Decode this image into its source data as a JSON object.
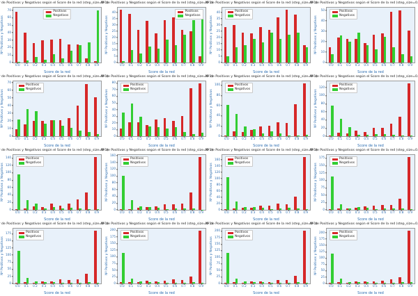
{
  "figure": {
    "subplot_title": "Nº de Positivos y Negativos según el Score de la red (step_size=0.1)",
    "xlabel": "Score de la red",
    "ylabel": "Nº Positivos y Negativos",
    "legend_labels": [
      "Positivos",
      "Negativos"
    ],
    "colors": {
      "positivos": "#d62728",
      "negativos": "#32cd32",
      "axes_background": "#e8f1fa",
      "axis_label_blue": "#2b6cb0",
      "title_text": "#1a1a1a"
    },
    "grid_layout": "4x4"
  },
  "chart_data": [
    {
      "type": "bar",
      "title": "Nº de Positivos y Negativos según el Score de la red (step_size=0.1)",
      "xlabel": "Score de la red",
      "ylabel": "Nº Positivos y Negativos",
      "categories": [
        "0.0",
        "0.1",
        "0.2",
        "0.3",
        "0.4",
        "0.5",
        "0.6",
        "0.7",
        "0.8",
        "0.9"
      ],
      "series": [
        {
          "name": "Positivos",
          "values": [
            68,
            40,
            26,
            30,
            31,
            32,
            24,
            24,
            6,
            2
          ]
        },
        {
          "name": "Negativos",
          "values": [
            1,
            3,
            7,
            4,
            11,
            6,
            16,
            23,
            27,
            70
          ]
        }
      ],
      "ylim": [
        0,
        74
      ],
      "ytick_step": 10,
      "legend_pos": "upper-center",
      "grid": false
    },
    {
      "type": "bar",
      "title": "Nº de Positivos y Negativos según el Score de la red (step_size=0.1)",
      "xlabel": "Score de la red",
      "ylabel": "Nº Positivos y Negativos",
      "categories": [
        "0.0",
        "0.1",
        "0.2",
        "0.3",
        "0.4",
        "0.5",
        "0.6",
        "0.7",
        "0.8",
        "0.9"
      ],
      "series": [
        {
          "name": "Positivos",
          "values": [
            42,
            39,
            26,
            33,
            23,
            34,
            36,
            26,
            25,
            5
          ]
        },
        {
          "name": "Negativos",
          "values": [
            1,
            10,
            7,
            13,
            11,
            18,
            14,
            22,
            34,
            37
          ]
        }
      ],
      "ylim": [
        0,
        44
      ],
      "ytick_step": 5,
      "legend_pos": "upper-right",
      "grid": false
    },
    {
      "type": "bar",
      "title": "Nº de Positivos y Negativos según el Score de la red (step_size=0.1)",
      "xlabel": "Score de la red",
      "ylabel": "Nº Positivos y Negativos",
      "categories": [
        "0.0",
        "0.1",
        "0.2",
        "0.3",
        "0.4",
        "0.5",
        "0.6",
        "0.7",
        "0.8",
        "0.9"
      ],
      "series": [
        {
          "name": "Positivos",
          "values": [
            28,
            30,
            24,
            23,
            28,
            26,
            36,
            42,
            38,
            14
          ]
        },
        {
          "name": "Negativos",
          "values": [
            5,
            12,
            14,
            19,
            16,
            24,
            19,
            22,
            24,
            12
          ]
        }
      ],
      "ylim": [
        0,
        44
      ],
      "ytick_step": 5,
      "legend_pos": "upper-left",
      "grid": false
    },
    {
      "type": "bar",
      "title": "Nº de Positivos y Negativos según el Score de la red (step_size=0.1)",
      "xlabel": "Score de la red",
      "ylabel": "Nº Positivos y Negativos",
      "categories": [
        "0.0",
        "0.1",
        "0.2",
        "0.3",
        "0.4",
        "0.5",
        "0.6",
        "0.7",
        "0.8",
        "0.9"
      ],
      "series": [
        {
          "name": "Positivos",
          "values": [
            15,
            24,
            23,
            23,
            19,
            27,
            28,
            49,
            50,
            31
          ]
        },
        {
          "name": "Negativos",
          "values": [
            8,
            26,
            20,
            29,
            17,
            13,
            25,
            15,
            8,
            6
          ]
        }
      ],
      "ylim": [
        0,
        53
      ],
      "ytick_step": 10,
      "legend_pos": "upper-left",
      "grid": false
    },
    {
      "type": "bar",
      "title": "Nº de Positivos y Negativos según el Score de la red (step_size=0.1)",
      "xlabel": "Score de la red",
      "ylabel": "Nº Positivos y Negativos",
      "categories": [
        "0.0",
        "0.1",
        "0.2",
        "0.3",
        "0.4",
        "0.5",
        "0.6",
        "0.7",
        "0.8",
        "0.9"
      ],
      "series": [
        {
          "name": "Positivos",
          "values": [
            9,
            15,
            20,
            20,
            21,
            21,
            24,
            40,
            68,
            51
          ]
        },
        {
          "name": "Negativos",
          "values": [
            22,
            35,
            33,
            16,
            21,
            14,
            11,
            7,
            5,
            3
          ]
        }
      ],
      "ylim": [
        0,
        72
      ],
      "ytick_step": 10,
      "legend_pos": "upper-left",
      "grid": false
    },
    {
      "type": "bar",
      "title": "Nº de Positivos y Negativos según el Score de la red (step_size=0.1)",
      "xlabel": "Score de la red",
      "ylabel": "Nº Positivos y Negativos",
      "categories": [
        "0.0",
        "0.1",
        "0.2",
        "0.3",
        "0.4",
        "0.5",
        "0.6",
        "0.7",
        "0.8",
        "0.9"
      ],
      "series": [
        {
          "name": "Positivos",
          "values": [
            11,
            21,
            21,
            17,
            25,
            27,
            23,
            30,
            72,
            79
          ]
        },
        {
          "name": "Negativos",
          "values": [
            35,
            49,
            29,
            15,
            14,
            12,
            14,
            6,
            3,
            5
          ]
        }
      ],
      "ylim": [
        0,
        83
      ],
      "ytick_step": 10,
      "legend_pos": "upper-left",
      "grid": false
    },
    {
      "type": "bar",
      "title": "Nº de Positivos y Negativos según el Score de la red (step_size=0.1)",
      "xlabel": "Score de la red",
      "ylabel": "Nº Positivos y Negativos",
      "categories": [
        "0.0",
        "0.1",
        "0.2",
        "0.3",
        "0.4",
        "0.5",
        "0.6",
        "0.7",
        "0.8",
        "0.9"
      ],
      "series": [
        {
          "name": "Positivos",
          "values": [
            2,
            10,
            8,
            12,
            19,
            20,
            27,
            26,
            62,
            103
          ]
        },
        {
          "name": "Negativos",
          "values": [
            61,
            44,
            19,
            13,
            6,
            9,
            6,
            2,
            2,
            3
          ]
        }
      ],
      "ylim": [
        0,
        108
      ],
      "ytick_step": 20,
      "legend_pos": "upper-left",
      "grid": false
    },
    {
      "type": "bar",
      "title": "Nº de Positivos y Negativos según el Score de la red (step_size=0.1)",
      "xlabel": "Score de la red",
      "ylabel": "Nº Positivos y Negativos",
      "categories": [
        "0.0",
        "0.1",
        "0.2",
        "0.3",
        "0.4",
        "0.5",
        "0.6",
        "0.7",
        "0.8",
        "0.9"
      ],
      "series": [
        {
          "name": "Positivos",
          "values": [
            2,
            8,
            7,
            13,
            10,
            20,
            20,
            31,
            48,
            130
          ]
        },
        {
          "name": "Negativos",
          "values": [
            75,
            42,
            22,
            4,
            4,
            6,
            6,
            4,
            2,
            2
          ]
        }
      ],
      "ylim": [
        0,
        136
      ],
      "ytick_step": 20,
      "legend_pos": "upper-left",
      "grid": false
    },
    {
      "type": "bar",
      "title": "Nº de Positivos y Negativos según el Score de la red (step_size=0.1)",
      "xlabel": "Score de la red",
      "ylabel": "Nº Positivos y Negativos",
      "categories": [
        "0.0",
        "0.1",
        "0.2",
        "0.3",
        "0.4",
        "0.5",
        "0.6",
        "0.7",
        "0.8",
        "0.9"
      ],
      "series": [
        {
          "name": "Positivos",
          "values": [
            2,
            4,
            9,
            8,
            17,
            12,
            16,
            29,
            46,
            142
          ]
        },
        {
          "name": "Negativos",
          "values": [
            96,
            26,
            16,
            4,
            7,
            3,
            5,
            3,
            2,
            2
          ]
        }
      ],
      "ylim": [
        0,
        149
      ],
      "ytick_step": 20,
      "legend_pos": "upper-left",
      "grid": false
    },
    {
      "type": "bar",
      "title": "Nº de Positivos y Negativos según el Score de la red (step_size=0.1)",
      "xlabel": "Score de la red",
      "ylabel": "Nº Positivos y Negativos",
      "categories": [
        "0.0",
        "0.1",
        "0.2",
        "0.3",
        "0.4",
        "0.5",
        "0.6",
        "0.7",
        "0.8",
        "0.9"
      ],
      "series": [
        {
          "name": "Positivos",
          "values": [
            2,
            2,
            7,
            9,
            11,
            16,
            16,
            18,
            52,
            155
          ]
        },
        {
          "name": "Negativos",
          "values": [
            101,
            28,
            10,
            9,
            7,
            2,
            4,
            4,
            4,
            1
          ]
        }
      ],
      "ylim": [
        0,
        163
      ],
      "ytick_step": 20,
      "legend_pos": "upper-left",
      "grid": false
    },
    {
      "type": "bar",
      "title": "Nº de Positivos y Negativos según el Score de la red (step_size=0.1)",
      "xlabel": "Score de la red",
      "ylabel": "Nº Positivos y Negativos",
      "categories": [
        "0.0",
        "0.1",
        "0.2",
        "0.3",
        "0.4",
        "0.5",
        "0.6",
        "0.7",
        "0.8",
        "0.9"
      ],
      "series": [
        {
          "name": "Positivos",
          "values": [
            3,
            4,
            6,
            7,
            13,
            14,
            19,
            18,
            41,
            168
          ]
        },
        {
          "name": "Negativos",
          "values": [
            104,
            27,
            8,
            9,
            7,
            3,
            5,
            6,
            5,
            2
          ]
        }
      ],
      "ylim": [
        0,
        176
      ],
      "ytick_step": 20,
      "legend_pos": "upper-left",
      "grid": false
    },
    {
      "type": "bar",
      "title": "Nº de Positivos y Negativos según el Score de la red (step_size=0.1)",
      "xlabel": "Score de la red",
      "ylabel": "Nº Positivos y Negativos",
      "categories": [
        "0.0",
        "0.1",
        "0.2",
        "0.3",
        "0.4",
        "0.5",
        "0.6",
        "0.7",
        "0.8",
        "0.9"
      ],
      "series": [
        {
          "name": "Positivos",
          "values": [
            3,
            5,
            5,
            8,
            12,
            13,
            16,
            16,
            38,
            178
          ]
        },
        {
          "name": "Negativos",
          "values": [
            112,
            20,
            4,
            10,
            6,
            3,
            4,
            5,
            5,
            2
          ]
        }
      ],
      "ylim": [
        0,
        187
      ],
      "ytick_step": 25,
      "legend_pos": "upper-left",
      "grid": false
    },
    {
      "type": "bar",
      "title": "Nº de Positivos y Negativos según el Score de la red (step_size=0.1)",
      "xlabel": "Score de la red",
      "ylabel": "Nº Positivos y Negativos",
      "categories": [
        "0.0",
        "0.1",
        "0.2",
        "0.3",
        "0.4",
        "0.5",
        "0.6",
        "0.7",
        "0.8",
        "0.9"
      ],
      "series": [
        {
          "name": "Positivos",
          "values": [
            3,
            5,
            3,
            7,
            7,
            15,
            12,
            14,
            34,
            185
          ]
        },
        {
          "name": "Negativos",
          "values": [
            114,
            19,
            8,
            6,
            6,
            3,
            2,
            2,
            4,
            2
          ]
        }
      ],
      "ylim": [
        0,
        194
      ],
      "ytick_step": 25,
      "legend_pos": "upper-left",
      "grid": false
    },
    {
      "type": "bar",
      "title": "Nº de Positivos y Negativos según el Score de la red (step_size=0.1)",
      "xlabel": "Score de la red",
      "ylabel": "Nº Positivos y Negativos",
      "categories": [
        "0.0",
        "0.1",
        "0.2",
        "0.3",
        "0.4",
        "0.5",
        "0.6",
        "0.7",
        "0.8",
        "0.9"
      ],
      "series": [
        {
          "name": "Positivos",
          "values": [
            4,
            5,
            6,
            10,
            7,
            10,
            15,
            13,
            27,
            197
          ]
        },
        {
          "name": "Negativos",
          "values": [
            115,
            18,
            8,
            5,
            6,
            3,
            3,
            2,
            5,
            3
          ]
        }
      ],
      "ylim": [
        0,
        207
      ],
      "ytick_step": 25,
      "legend_pos": "upper-left",
      "grid": false
    },
    {
      "type": "bar",
      "title": "Nº de Positivos y Negativos según el Score de la red (step_size=0.1)",
      "xlabel": "Score de la red",
      "ylabel": "Nº Positivos y Negativos",
      "categories": [
        "0.0",
        "0.1",
        "0.2",
        "0.3",
        "0.4",
        "0.5",
        "0.6",
        "0.7",
        "0.8",
        "0.9"
      ],
      "series": [
        {
          "name": "Positivos",
          "values": [
            2,
            5,
            3,
            7,
            8,
            6,
            14,
            13,
            28,
            200
          ]
        },
        {
          "name": "Negativos",
          "values": [
            116,
            19,
            8,
            5,
            5,
            3,
            4,
            2,
            5,
            2
          ]
        }
      ],
      "ylim": [
        0,
        210
      ],
      "ytick_step": 25,
      "legend_pos": "upper-left",
      "grid": false
    },
    {
      "type": "bar",
      "title": "Nº de Positivos y Negativos según el Score de la red (step_size=0.1)",
      "xlabel": "Score de la red",
      "ylabel": "Nº Positivos y Negativos",
      "categories": [
        "0.0",
        "0.1",
        "0.2",
        "0.3",
        "0.4",
        "0.5",
        "0.6",
        "0.7",
        "0.8",
        "0.9"
      ],
      "series": [
        {
          "name": "Positivos",
          "values": [
            4,
            6,
            3,
            8,
            9,
            7,
            12,
            17,
            25,
            207
          ]
        },
        {
          "name": "Negativos",
          "values": [
            118,
            18,
            6,
            5,
            5,
            4,
            4,
            3,
            5,
            5
          ]
        }
      ],
      "ylim": [
        0,
        217
      ],
      "ytick_step": 25,
      "legend_pos": "upper-left",
      "grid": false
    }
  ]
}
